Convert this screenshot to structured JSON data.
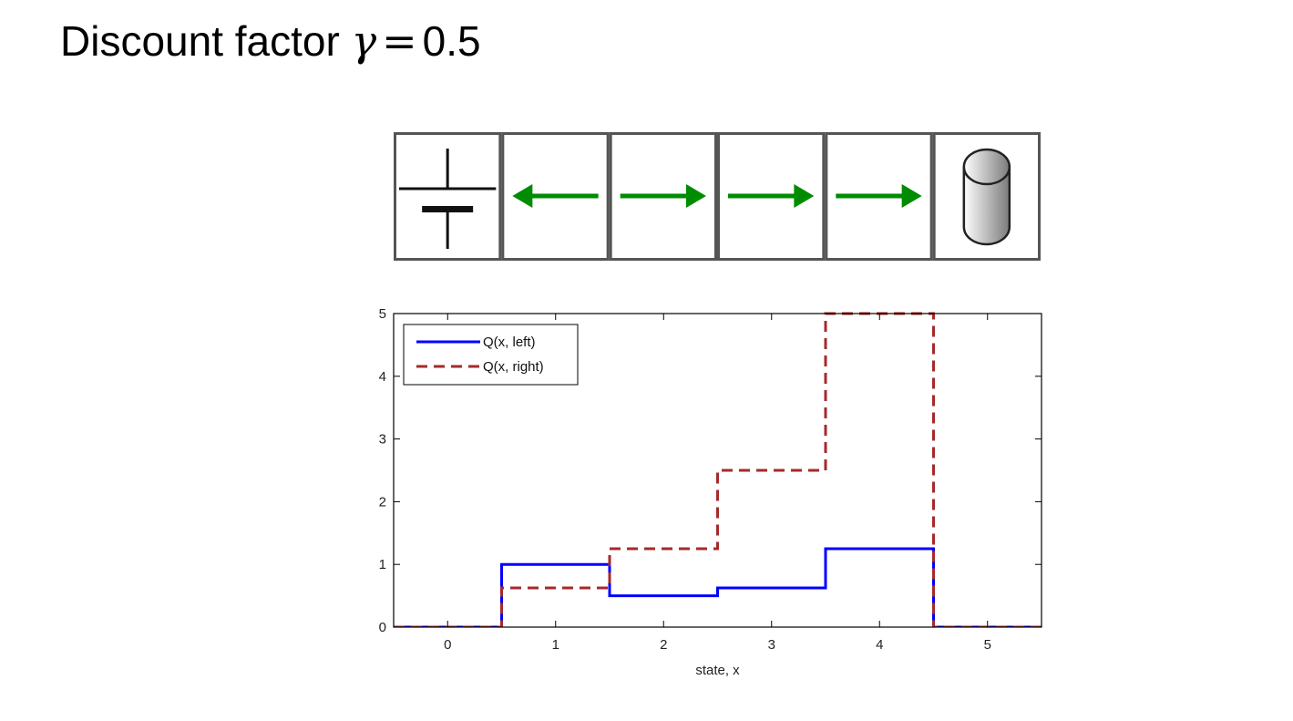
{
  "slide": {
    "title_prefix": "Discount factor ",
    "title_symbol": "γ",
    "title_equals": "=",
    "title_value": "0.5"
  },
  "grid": {
    "cells": [
      {
        "state": 0,
        "content": "pit-icon"
      },
      {
        "state": 1,
        "content": "arrow-left"
      },
      {
        "state": 2,
        "content": "arrow-right"
      },
      {
        "state": 3,
        "content": "arrow-right"
      },
      {
        "state": 4,
        "content": "arrow-right"
      },
      {
        "state": 5,
        "content": "cylinder-icon"
      }
    ],
    "arrow_color": "#008c00",
    "border_color": "#555555"
  },
  "chart_data": {
    "type": "line",
    "step": true,
    "xlabel": "state, x",
    "ylabel": "",
    "xlim": [
      -0.5,
      5.5
    ],
    "ylim": [
      0,
      5
    ],
    "xticks": [
      0,
      1,
      2,
      3,
      4,
      5
    ],
    "yticks": [
      0,
      1,
      2,
      3,
      4,
      5
    ],
    "grid": false,
    "legend_position": "top-left",
    "x": [
      0,
      1,
      2,
      3,
      4,
      5
    ],
    "series": [
      {
        "name": "Q(x, left)",
        "values": [
          0,
          1,
          0.5,
          0.625,
          1.25,
          0
        ],
        "color": "#0000ff",
        "dash": "solid"
      },
      {
        "name": "Q(x, right)",
        "values": [
          0,
          0.625,
          1.25,
          2.5,
          5,
          0
        ],
        "color": "#a52a2a",
        "dash": "dashed"
      }
    ]
  }
}
